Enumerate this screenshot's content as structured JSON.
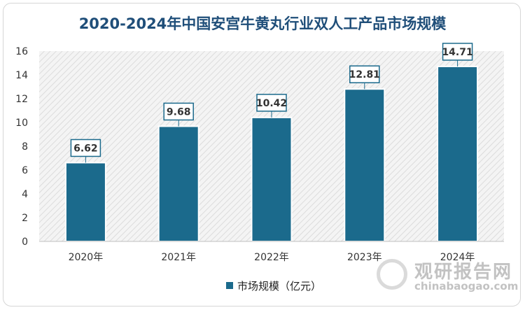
{
  "chart_data": {
    "type": "bar",
    "title": "2020-2024年中国安宫牛黄丸行业双人工产品市场规模",
    "categories": [
      "2020年",
      "2021年",
      "2022年",
      "2023年",
      "2024年"
    ],
    "series": [
      {
        "name": "市场规模（亿元）",
        "values": [
          6.62,
          9.68,
          10.42,
          12.81,
          14.71
        ]
      }
    ],
    "yticks": [
      "0",
      "2",
      "4",
      "6",
      "8",
      "10",
      "12",
      "14",
      "16"
    ],
    "ylim": [
      0,
      16
    ],
    "grid": false,
    "legend": "bottom",
    "colors": {
      "bar": "#1b6a8c",
      "label_border": "#1b6a8c",
      "title": "#1f4e79"
    }
  },
  "watermark": {
    "brand": "观研报告网",
    "url": "chinabaogao.com"
  }
}
